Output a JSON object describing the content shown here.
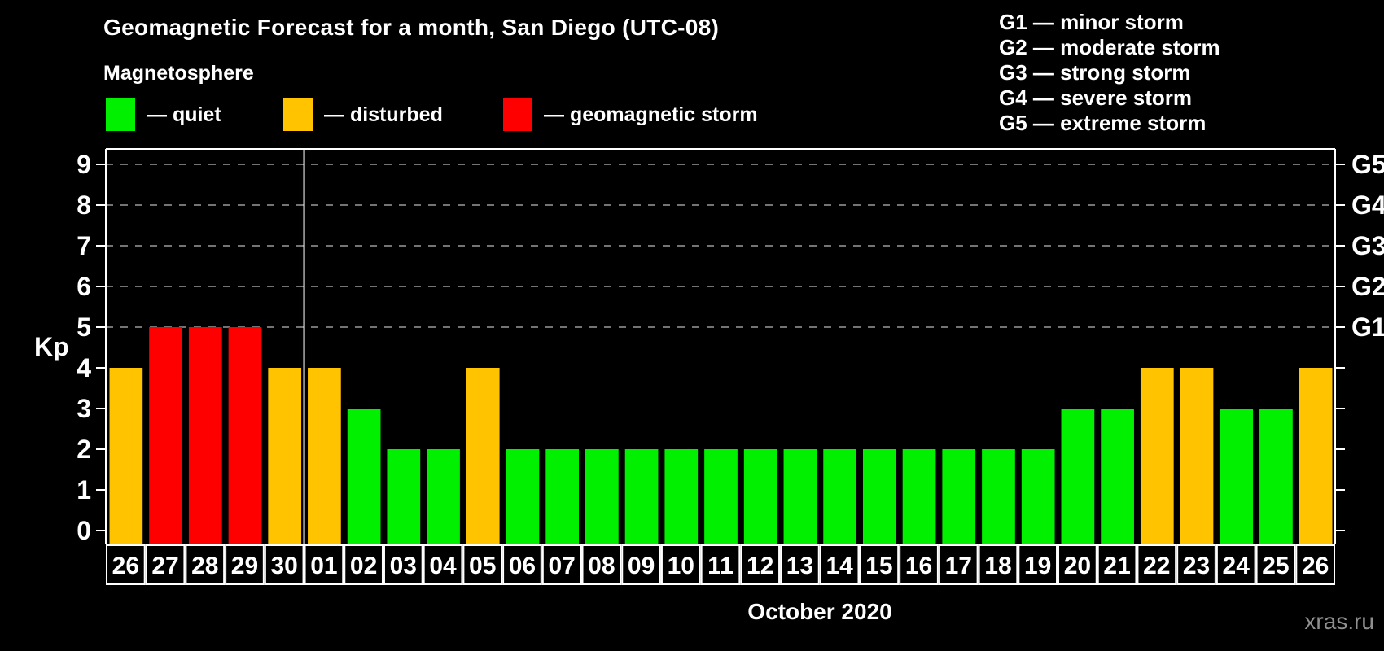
{
  "header": {
    "title": "Geomagnetic Forecast for a month, San Diego (UTC-08)",
    "subtitle": "Magnetosphere"
  },
  "legend": {
    "items": [
      {
        "key": "quiet",
        "label": "— quiet",
        "color": "#00f000"
      },
      {
        "key": "disturbed",
        "label": "— disturbed",
        "color": "#ffc300"
      },
      {
        "key": "storm",
        "label": "— geomagnetic storm",
        "color": "#ff0000"
      }
    ]
  },
  "g_legend": [
    {
      "label": "G1 — minor storm"
    },
    {
      "label": "G2 — moderate storm"
    },
    {
      "label": "G3 — strong storm"
    },
    {
      "label": "G4 — severe storm"
    },
    {
      "label": "G5 — extreme storm"
    }
  ],
  "watermark": "xras.ru",
  "chart_data": {
    "type": "bar",
    "title": "Geomagnetic Forecast for a month, San Diego (UTC-08)",
    "ylabel": "Kp",
    "xlabel": "October 2020",
    "ylim": [
      0,
      9
    ],
    "y_ticks": [
      0,
      1,
      2,
      3,
      4,
      5,
      6,
      7,
      8,
      9
    ],
    "gridlines_at": [
      5,
      6,
      7,
      8,
      9
    ],
    "grid_color": "#9a9a9a",
    "axis_color": "#ffffff",
    "right_axis_ticks": [
      {
        "kp": 5,
        "label": "G1"
      },
      {
        "kp": 6,
        "label": "G2"
      },
      {
        "kp": 7,
        "label": "G3"
      },
      {
        "kp": 8,
        "label": "G4"
      },
      {
        "kp": 9,
        "label": "G5"
      }
    ],
    "month_boundary_index": 5,
    "categories": [
      "26",
      "27",
      "28",
      "29",
      "30",
      "01",
      "02",
      "03",
      "04",
      "05",
      "06",
      "07",
      "08",
      "09",
      "10",
      "11",
      "12",
      "13",
      "14",
      "15",
      "16",
      "17",
      "18",
      "19",
      "20",
      "21",
      "22",
      "23",
      "24",
      "25",
      "26"
    ],
    "values": [
      4,
      5,
      5,
      5,
      4,
      4,
      3,
      2,
      2,
      4,
      2,
      2,
      2,
      2,
      2,
      2,
      2,
      2,
      2,
      2,
      2,
      2,
      2,
      2,
      3,
      3,
      4,
      4,
      3,
      3,
      4
    ],
    "status": [
      "disturbed",
      "storm",
      "storm",
      "storm",
      "disturbed",
      "disturbed",
      "quiet",
      "quiet",
      "quiet",
      "disturbed",
      "quiet",
      "quiet",
      "quiet",
      "quiet",
      "quiet",
      "quiet",
      "quiet",
      "quiet",
      "quiet",
      "quiet",
      "quiet",
      "quiet",
      "quiet",
      "quiet",
      "quiet",
      "quiet",
      "disturbed",
      "disturbed",
      "quiet",
      "quiet",
      "disturbed"
    ]
  }
}
